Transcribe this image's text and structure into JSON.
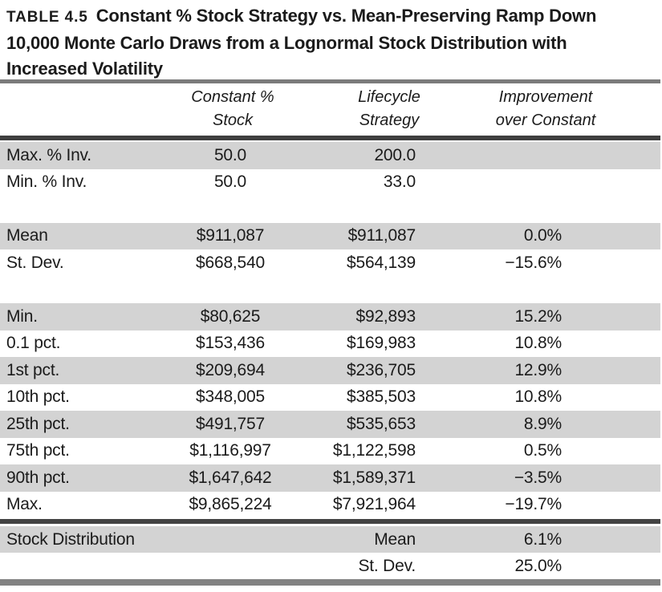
{
  "title": {
    "tag": "TABLE 4.5",
    "lines": [
      "Constant % Stock Strategy vs. Mean-Preserving Ramp Down",
      "10,000 Monte Carlo Draws from a Lognormal Stock Distribution with",
      "Increased Volatility"
    ]
  },
  "table": {
    "column_headers": [
      {
        "line1": "Constant %",
        "line2": "Stock"
      },
      {
        "line1": "Lifecycle",
        "line2": "Strategy"
      },
      {
        "line1": "Improvement",
        "line2": "over Constant"
      }
    ],
    "rows": [
      {
        "label": "Max. % Inv.",
        "constant": "50.0",
        "lifecycle": "200.0",
        "improvement": "",
        "shaded": true
      },
      {
        "label": "Min. % Inv.",
        "constant": "50.0",
        "lifecycle": "33.0",
        "improvement": "",
        "shaded": false
      },
      {
        "spacer": true
      },
      {
        "label": "Mean",
        "constant": "$911,087",
        "lifecycle": "$911,087",
        "improvement": "0.0%",
        "shaded": true
      },
      {
        "label": "St. Dev.",
        "constant": "$668,540",
        "lifecycle": "$564,139",
        "improvement": "−15.6%",
        "shaded": false
      },
      {
        "spacer": true
      },
      {
        "label": "Min.",
        "constant": "$80,625",
        "lifecycle": "$92,893",
        "improvement": "15.2%",
        "shaded": true
      },
      {
        "label": "0.1 pct.",
        "constant": "$153,436",
        "lifecycle": "$169,983",
        "improvement": "10.8%",
        "shaded": false
      },
      {
        "label": "1st pct.",
        "constant": "$209,694",
        "lifecycle": "$236,705",
        "improvement": "12.9%",
        "shaded": true
      },
      {
        "label": "10th pct.",
        "constant": "$348,005",
        "lifecycle": "$385,503",
        "improvement": "10.8%",
        "shaded": false
      },
      {
        "label": "25th pct.",
        "constant": "$491,757",
        "lifecycle": "$535,653",
        "improvement": "8.9%",
        "shaded": true
      },
      {
        "label": "75th pct.",
        "constant": "$1,116,997",
        "lifecycle": "$1,122,598",
        "improvement": "0.5%",
        "shaded": false
      },
      {
        "label": "90th pct.",
        "constant": "$1,647,642",
        "lifecycle": "$1,589,371",
        "improvement": "−3.5%",
        "shaded": true
      },
      {
        "label": "Max.",
        "constant": "$9,865,224",
        "lifecycle": "$7,921,964",
        "improvement": "−19.7%",
        "shaded": false
      }
    ],
    "footer_rows": [
      {
        "label": "Stock Distribution",
        "constant": "",
        "stat": "Mean",
        "value": "6.1%",
        "shaded": true
      },
      {
        "label": "",
        "constant": "",
        "stat": "St. Dev.",
        "value": "25.0%",
        "shaded": false
      }
    ]
  },
  "colors": {
    "row_shade": "#d3d3d3",
    "rule_top": "#7b7b7b",
    "rule_header": "#3f3f3f",
    "rule_prefooter": "#424242",
    "rule_bottom": "#828282",
    "text": "#1b1b1b"
  }
}
